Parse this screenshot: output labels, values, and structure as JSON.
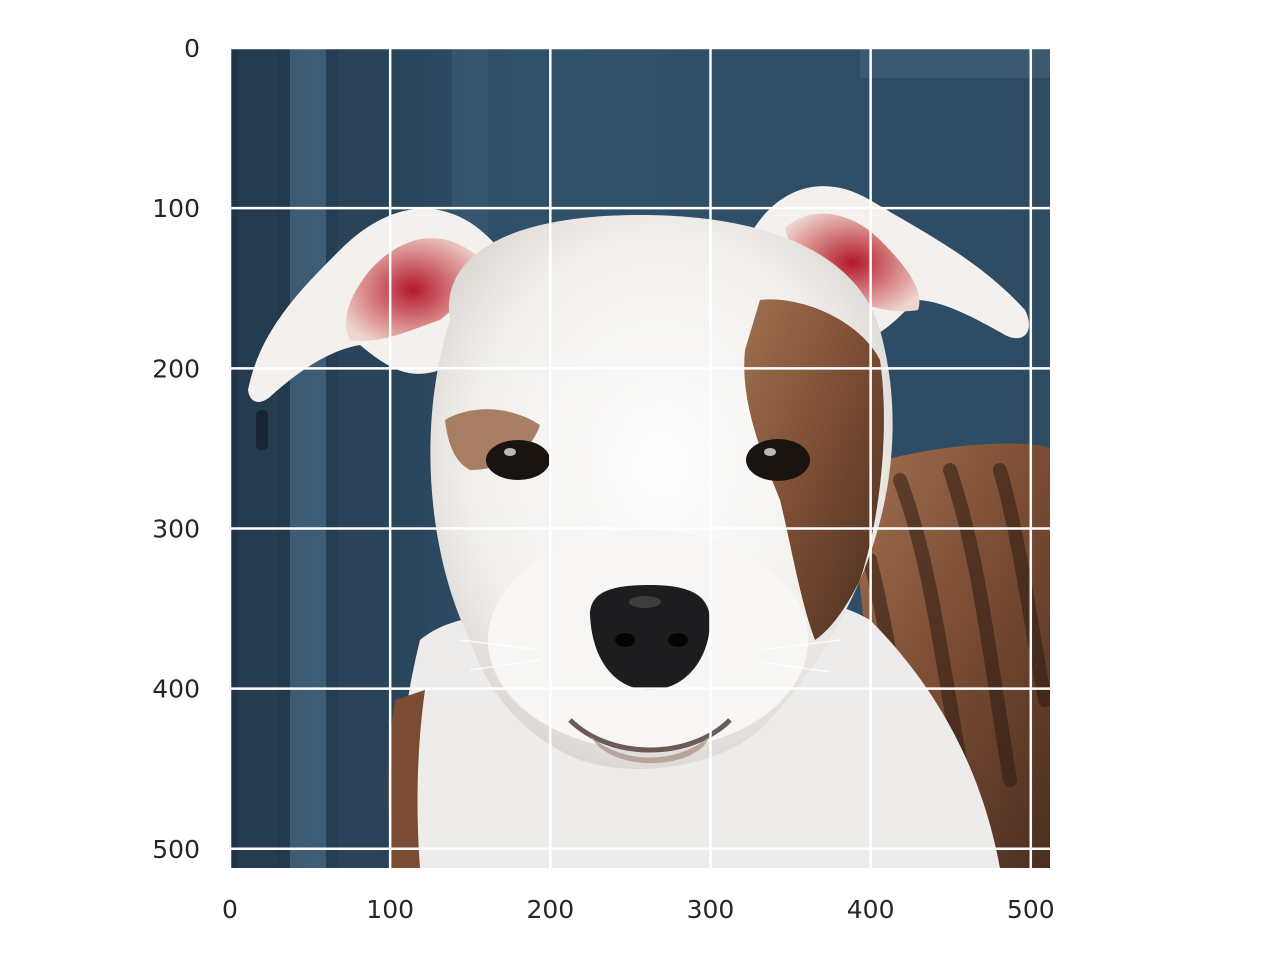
{
  "figure": {
    "kind": "image display with pixel-coordinate axes",
    "subject": "white puppy with brindle patch",
    "grid": true,
    "grid_color": "#ffffff",
    "background_color": "#2f4d66"
  },
  "axes": {
    "x": {
      "min": 0,
      "max": 512,
      "ticks": [
        0,
        100,
        200,
        300,
        400,
        500
      ],
      "direction": "left-to-right"
    },
    "y": {
      "min": 0,
      "max": 512,
      "ticks": [
        0,
        100,
        200,
        300,
        400,
        500
      ],
      "direction": "top-to-bottom"
    }
  },
  "tick_labels": {
    "x": [
      "0",
      "100",
      "200",
      "300",
      "400",
      "500"
    ],
    "y": [
      "0",
      "100",
      "200",
      "300",
      "400",
      "500"
    ]
  },
  "palette": {
    "fur_white": "#f4f3f1",
    "fur_shadow": "#d9d6d2",
    "brindle": "#8a5a3c",
    "brindle_dark": "#3b2418",
    "ear_inner": "#e8b9b4",
    "ear_red": "#b2182b",
    "nose": "#1d1d1f",
    "eye": "#1a1410",
    "tick_text": "#262626"
  }
}
